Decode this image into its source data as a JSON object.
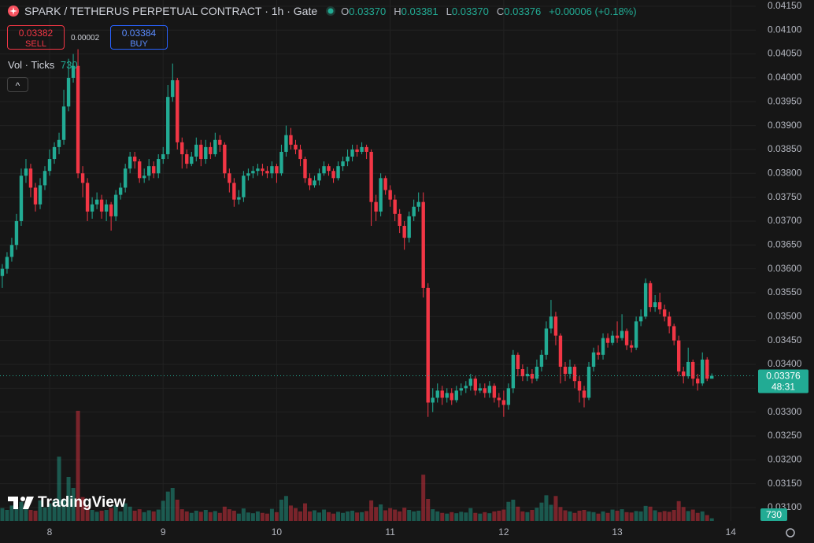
{
  "header": {
    "title": "SPARK / TETHERUS PERPETUAL CONTRACT · 1h · Gate",
    "ohlc": [
      {
        "key": "O",
        "value": "0.03370"
      },
      {
        "key": "H",
        "value": "0.03381"
      },
      {
        "key": "L",
        "value": "0.03370"
      },
      {
        "key": "C",
        "value": "0.03376"
      }
    ],
    "change": "+0.00006 (+0.18%)",
    "sell": {
      "price": "0.03382",
      "label": "SELL"
    },
    "spread": "0.00002",
    "buy": {
      "price": "0.03384",
      "label": "BUY"
    },
    "volume_legend": "Vol · Ticks",
    "countdown": "48:31",
    "logo": "TradingView"
  },
  "chart_data": {
    "type": "candlestick",
    "colors": {
      "up": "#22ab94",
      "down": "#f23645"
    },
    "grid": true,
    "xlim": [
      7.563,
      14.22
    ],
    "xticks": [
      8,
      9,
      10,
      11,
      12,
      13,
      14
    ],
    "ylim": [
      0.03072,
      0.04163
    ],
    "yticks": [
      {
        "value": 0.031,
        "label": "0.03100"
      },
      {
        "value": 0.0315,
        "label": "0.03150"
      },
      {
        "value": 0.032,
        "label": "0.03200"
      },
      {
        "value": 0.0325,
        "label": "0.03250"
      },
      {
        "value": 0.033,
        "label": "0.03300"
      },
      {
        "value": 0.0335,
        "label": "0.03350"
      },
      {
        "value": 0.034,
        "label": "0.03400"
      },
      {
        "value": 0.0345,
        "label": "0.03450"
      },
      {
        "value": 0.035,
        "label": "0.03500"
      },
      {
        "value": 0.0355,
        "label": "0.03550"
      },
      {
        "value": 0.036,
        "label": "0.03600"
      },
      {
        "value": 0.0365,
        "label": "0.03650"
      },
      {
        "value": 0.037,
        "label": "0.03700"
      },
      {
        "value": 0.0375,
        "label": "0.03750"
      },
      {
        "value": 0.038,
        "label": "0.03800"
      },
      {
        "value": 0.0385,
        "label": "0.03850"
      },
      {
        "value": 0.039,
        "label": "0.03900"
      },
      {
        "value": 0.0395,
        "label": "0.03950"
      },
      {
        "value": 0.04,
        "label": "0.04000"
      },
      {
        "value": 0.0405,
        "label": "0.04050"
      },
      {
        "value": 0.041,
        "label": "0.04100"
      },
      {
        "value": 0.0415,
        "label": "0.04150"
      }
    ],
    "x": [
      7.5833,
      7.625,
      7.6667,
      7.7083,
      7.75,
      7.7917,
      7.8333,
      7.875,
      7.9167,
      7.9583,
      8,
      8.0417,
      8.0833,
      8.125,
      8.1667,
      8.2083,
      8.25,
      8.2917,
      8.3333,
      8.375,
      8.4167,
      8.4583,
      8.5,
      8.5417,
      8.5833,
      8.625,
      8.6667,
      8.7083,
      8.75,
      8.7917,
      8.8333,
      8.875,
      8.9167,
      8.9583,
      9,
      9.0417,
      9.0833,
      9.125,
      9.1667,
      9.2083,
      9.25,
      9.2917,
      9.3333,
      9.375,
      9.4167,
      9.4583,
      9.5,
      9.5417,
      9.5833,
      9.625,
      9.6667,
      9.7083,
      9.75,
      9.7917,
      9.8333,
      9.875,
      9.9167,
      9.9583,
      10,
      10.0417,
      10.0833,
      10.125,
      10.1667,
      10.2083,
      10.25,
      10.2917,
      10.3333,
      10.375,
      10.4167,
      10.4583,
      10.5,
      10.5417,
      10.5833,
      10.625,
      10.6667,
      10.7083,
      10.75,
      10.7917,
      10.8333,
      10.875,
      10.9167,
      10.9583,
      11,
      11.0417,
      11.0833,
      11.125,
      11.1667,
      11.2083,
      11.25,
      11.2917,
      11.3333,
      11.375,
      11.4167,
      11.4583,
      11.5,
      11.5417,
      11.5833,
      11.625,
      11.6667,
      11.7083,
      11.75,
      11.7917,
      11.8333,
      11.875,
      11.9167,
      11.9583,
      12,
      12.0417,
      12.0833,
      12.125,
      12.1667,
      12.2083,
      12.25,
      12.2917,
      12.3333,
      12.375,
      12.4167,
      12.4583,
      12.5,
      12.5417,
      12.5833,
      12.625,
      12.6667,
      12.7083,
      12.75,
      12.7917,
      12.8333,
      12.875,
      12.9167,
      12.9583,
      13,
      13.0417,
      13.0833,
      13.125,
      13.1667,
      13.2083,
      13.25,
      13.2917,
      13.3333,
      13.375,
      13.4167,
      13.4583,
      13.5,
      13.5417,
      13.5833,
      13.625,
      13.6667,
      13.7083,
      13.75,
      13.7917,
      13.8333
    ],
    "open": [
      0.03585,
      0.036,
      0.03625,
      0.0365,
      0.037,
      0.03795,
      0.0381,
      0.0377,
      0.03735,
      0.03775,
      0.03805,
      0.0383,
      0.03855,
      0.0387,
      0.0394,
      0.04,
      0.04025,
      0.038,
      0.0378,
      0.0372,
      0.03735,
      0.03745,
      0.0372,
      0.03735,
      0.0371,
      0.03755,
      0.0377,
      0.0381,
      0.03835,
      0.03825,
      0.0379,
      0.03795,
      0.03815,
      0.038,
      0.0383,
      0.0384,
      0.0396,
      0.03995,
      0.03865,
      0.0384,
      0.0382,
      0.03835,
      0.0386,
      0.0383,
      0.03855,
      0.0384,
      0.0387,
      0.0386,
      0.038,
      0.0378,
      0.03745,
      0.0375,
      0.03795,
      0.038,
      0.03805,
      0.0381,
      0.03805,
      0.038,
      0.03815,
      0.038,
      0.03845,
      0.0388,
      0.0386,
      0.0385,
      0.0383,
      0.0379,
      0.03775,
      0.03785,
      0.038,
      0.03815,
      0.03805,
      0.0379,
      0.03815,
      0.03825,
      0.03835,
      0.0385,
      0.03845,
      0.03855,
      0.03845,
      0.0374,
      0.0372,
      0.0379,
      0.03765,
      0.03745,
      0.03715,
      0.0369,
      0.03665,
      0.0371,
      0.0373,
      0.0374,
      0.0356,
      0.0332,
      0.0333,
      0.03345,
      0.0333,
      0.0334,
      0.03325,
      0.03345,
      0.0335,
      0.03355,
      0.0337,
      0.03345,
      0.0335,
      0.0334,
      0.03355,
      0.0333,
      0.03325,
      0.03315,
      0.0335,
      0.0342,
      0.0339,
      0.03375,
      0.0338,
      0.0337,
      0.03395,
      0.0342,
      0.03475,
      0.035,
      0.0346,
      0.03395,
      0.0338,
      0.03395,
      0.03365,
      0.03345,
      0.0333,
      0.03395,
      0.03425,
      0.0342,
      0.03455,
      0.03445,
      0.0346,
      0.03455,
      0.0347,
      0.0344,
      0.03435,
      0.0349,
      0.035,
      0.0357,
      0.0352,
      0.0353,
      0.03515,
      0.035,
      0.0348,
      0.0345,
      0.03385,
      0.03375,
      0.03405,
      0.0337,
      0.0336,
      0.0341,
      0.0337
    ],
    "high": [
      0.0361,
      0.03635,
      0.03665,
      0.03715,
      0.0381,
      0.0383,
      0.0382,
      0.0378,
      0.0379,
      0.03815,
      0.0385,
      0.03865,
      0.03885,
      0.03975,
      0.0404,
      0.0405,
      0.0406,
      0.03815,
      0.0379,
      0.0375,
      0.0376,
      0.03755,
      0.03745,
      0.0374,
      0.03765,
      0.0378,
      0.0382,
      0.03845,
      0.03845,
      0.0383,
      0.0381,
      0.0383,
      0.03825,
      0.0384,
      0.03855,
      0.03985,
      0.0403,
      0.04,
      0.03875,
      0.0385,
      0.03845,
      0.03875,
      0.0387,
      0.0387,
      0.03865,
      0.03885,
      0.0388,
      0.03865,
      0.0381,
      0.0379,
      0.03765,
      0.03805,
      0.0381,
      0.03815,
      0.0382,
      0.0382,
      0.03815,
      0.03825,
      0.0382,
      0.0386,
      0.039,
      0.03895,
      0.0387,
      0.0386,
      0.03835,
      0.038,
      0.03795,
      0.0381,
      0.03825,
      0.0382,
      0.0381,
      0.03825,
      0.03835,
      0.0385,
      0.0386,
      0.0386,
      0.03865,
      0.0386,
      0.0385,
      0.03755,
      0.038,
      0.03795,
      0.03775,
      0.03755,
      0.03725,
      0.037,
      0.0372,
      0.03745,
      0.0376,
      0.0376,
      0.0357,
      0.0335,
      0.0336,
      0.03355,
      0.0335,
      0.0335,
      0.03355,
      0.0336,
      0.03365,
      0.0338,
      0.03375,
      0.0336,
      0.0336,
      0.03365,
      0.0336,
      0.0334,
      0.03345,
      0.0336,
      0.0343,
      0.03425,
      0.034,
      0.03395,
      0.0339,
      0.0341,
      0.0343,
      0.0349,
      0.03535,
      0.0351,
      0.03465,
      0.03405,
      0.0341,
      0.034,
      0.03375,
      0.03355,
      0.03405,
      0.03435,
      0.0344,
      0.03465,
      0.03465,
      0.0347,
      0.0349,
      0.03505,
      0.03475,
      0.0345,
      0.035,
      0.03515,
      0.0358,
      0.03575,
      0.03545,
      0.0355,
      0.03525,
      0.0351,
      0.03485,
      0.0346,
      0.03395,
      0.03435,
      0.0341,
      0.0338,
      0.03425,
      0.03415,
      0.03381
    ],
    "low": [
      0.0356,
      0.0359,
      0.03615,
      0.0364,
      0.0369,
      0.0378,
      0.0375,
      0.0372,
      0.03725,
      0.03765,
      0.03795,
      0.0382,
      0.0384,
      0.0386,
      0.0393,
      0.0399,
      0.0379,
      0.0375,
      0.037,
      0.03705,
      0.03725,
      0.03705,
      0.037,
      0.0368,
      0.037,
      0.03745,
      0.0376,
      0.038,
      0.0381,
      0.0378,
      0.0378,
      0.03785,
      0.0379,
      0.0379,
      0.0382,
      0.0383,
      0.0395,
      0.0385,
      0.0381,
      0.0381,
      0.03815,
      0.03825,
      0.03815,
      0.0382,
      0.0383,
      0.03835,
      0.03845,
      0.0379,
      0.0376,
      0.0373,
      0.03735,
      0.0374,
      0.03785,
      0.0379,
      0.03795,
      0.03795,
      0.0379,
      0.0379,
      0.0378,
      0.03795,
      0.03835,
      0.0385,
      0.0384,
      0.03815,
      0.0378,
      0.03765,
      0.0377,
      0.03775,
      0.03795,
      0.03795,
      0.0378,
      0.03785,
      0.03805,
      0.03815,
      0.03825,
      0.03835,
      0.0384,
      0.0383,
      0.0369,
      0.037,
      0.0371,
      0.03755,
      0.0373,
      0.037,
      0.03675,
      0.0364,
      0.03655,
      0.037,
      0.0372,
      0.0354,
      0.0329,
      0.033,
      0.0332,
      0.03315,
      0.0332,
      0.03315,
      0.0332,
      0.03335,
      0.0334,
      0.03345,
      0.03335,
      0.0334,
      0.0333,
      0.0333,
      0.0332,
      0.0331,
      0.0329,
      0.03305,
      0.0334,
      0.03375,
      0.03365,
      0.03365,
      0.0336,
      0.03365,
      0.03385,
      0.0341,
      0.03465,
      0.0344,
      0.0336,
      0.03365,
      0.0337,
      0.0335,
      0.0332,
      0.0331,
      0.03325,
      0.03385,
      0.0341,
      0.0341,
      0.03435,
      0.0344,
      0.03445,
      0.0345,
      0.0343,
      0.03425,
      0.0343,
      0.0348,
      0.03495,
      0.0351,
      0.0351,
      0.03505,
      0.0349,
      0.03465,
      0.0344,
      0.03375,
      0.0336,
      0.0337,
      0.03355,
      0.03345,
      0.03355,
      0.03365,
      0.0337
    ],
    "close": [
      0.036,
      0.03625,
      0.0365,
      0.037,
      0.03795,
      0.0381,
      0.0377,
      0.03735,
      0.03775,
      0.03805,
      0.0383,
      0.03855,
      0.0387,
      0.0394,
      0.04,
      0.04025,
      0.038,
      0.0378,
      0.0372,
      0.03735,
      0.03745,
      0.0372,
      0.03735,
      0.0371,
      0.03755,
      0.0377,
      0.0381,
      0.03835,
      0.03825,
      0.0379,
      0.03795,
      0.03815,
      0.038,
      0.0383,
      0.0384,
      0.0396,
      0.03995,
      0.03865,
      0.0384,
      0.0382,
      0.03835,
      0.0386,
      0.0383,
      0.03855,
      0.0384,
      0.0387,
      0.0386,
      0.038,
      0.0378,
      0.03745,
      0.0375,
      0.03795,
      0.038,
      0.03805,
      0.0381,
      0.03805,
      0.038,
      0.03815,
      0.038,
      0.03845,
      0.0388,
      0.0386,
      0.0385,
      0.0383,
      0.0379,
      0.03775,
      0.03785,
      0.038,
      0.03815,
      0.03805,
      0.0379,
      0.03815,
      0.03825,
      0.03835,
      0.0385,
      0.03845,
      0.03855,
      0.03845,
      0.0374,
      0.0372,
      0.0379,
      0.03765,
      0.03745,
      0.03715,
      0.0369,
      0.03665,
      0.0371,
      0.0373,
      0.0374,
      0.0356,
      0.0332,
      0.0333,
      0.03345,
      0.0333,
      0.0334,
      0.03325,
      0.03345,
      0.0335,
      0.03355,
      0.0337,
      0.03345,
      0.0335,
      0.0334,
      0.03355,
      0.0333,
      0.03325,
      0.03315,
      0.0335,
      0.0342,
      0.0339,
      0.03375,
      0.0338,
      0.0337,
      0.03395,
      0.0342,
      0.03475,
      0.035,
      0.0346,
      0.03395,
      0.0338,
      0.03395,
      0.03365,
      0.03345,
      0.0333,
      0.03395,
      0.03425,
      0.0342,
      0.03455,
      0.03445,
      0.0346,
      0.03455,
      0.0347,
      0.0344,
      0.03435,
      0.0349,
      0.035,
      0.0357,
      0.0352,
      0.0353,
      0.03515,
      0.035,
      0.0348,
      0.0345,
      0.03385,
      0.03375,
      0.03405,
      0.0337,
      0.0336,
      0.0341,
      0.0337,
      0.03376
    ],
    "volume": [
      3500,
      3000,
      4200,
      3800,
      5200,
      4500,
      3000,
      2800,
      5600,
      3700,
      4800,
      5500,
      17500,
      6000,
      12000,
      9000,
      30000,
      6500,
      4000,
      3000,
      2500,
      2800,
      3000,
      3500,
      4200,
      2600,
      4800,
      3900,
      2800,
      3200,
      2400,
      2900,
      2600,
      3100,
      5500,
      8000,
      9000,
      5800,
      3200,
      2600,
      2200,
      2800,
      2500,
      3000,
      2400,
      2700,
      2200,
      3900,
      3200,
      2800,
      2000,
      3400,
      2300,
      2100,
      2600,
      2200,
      2000,
      3300,
      2400,
      5800,
      6800,
      4200,
      3500,
      2600,
      4800,
      2600,
      2900,
      2300,
      3100,
      2400,
      2000,
      2500,
      2200,
      2600,
      2800,
      2300,
      2400,
      2700,
      5600,
      3800,
      4500,
      2900,
      3500,
      3100,
      2600,
      3600,
      3000,
      2600,
      2800,
      12600,
      6000,
      3200,
      2600,
      2200,
      2000,
      2400,
      2100,
      2500,
      2300,
      3500,
      2200,
      2000,
      2400,
      2100,
      2600,
      2800,
      3100,
      5200,
      5800,
      3900,
      2600,
      2400,
      3000,
      3600,
      5000,
      7000,
      4400,
      6800,
      3800,
      2900,
      2600,
      2200,
      2800,
      3000,
      2600,
      2400,
      2000,
      2600,
      2200,
      3100,
      2800,
      3200,
      2400,
      2300,
      2700,
      2600,
      4100,
      3900,
      2900,
      2400,
      2700,
      2500,
      3000,
      5400,
      3800,
      2700,
      3100,
      2200,
      2600,
      1600,
      730
    ]
  }
}
